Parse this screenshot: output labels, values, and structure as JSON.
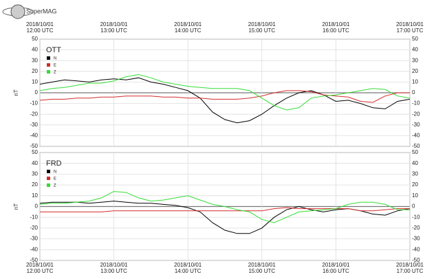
{
  "logo": "SuperMAG",
  "chart_data": [
    {
      "type": "line",
      "title": "OTT",
      "ylabel": "nT",
      "x": [
        "2018/10/01 12:00",
        "2018/10/01 12:10",
        "2018/10/01 12:20",
        "2018/10/01 12:30",
        "2018/10/01 12:40",
        "2018/10/01 12:50",
        "2018/10/01 13:00",
        "2018/10/01 13:10",
        "2018/10/01 13:20",
        "2018/10/01 13:30",
        "2018/10/01 13:40",
        "2018/10/01 13:50",
        "2018/10/01 14:00",
        "2018/10/01 14:10",
        "2018/10/01 14:20",
        "2018/10/01 14:30",
        "2018/10/01 14:40",
        "2018/10/01 14:50",
        "2018/10/01 15:00",
        "2018/10/01 15:10",
        "2018/10/01 15:20",
        "2018/10/01 15:30",
        "2018/10/01 15:40",
        "2018/10/01 15:50",
        "2018/10/01 16:00",
        "2018/10/01 16:10",
        "2018/10/01 16:20",
        "2018/10/01 16:30",
        "2018/10/01 16:40",
        "2018/10/01 16:50",
        "2018/10/01 17:00"
      ],
      "series": [
        {
          "name": "N",
          "color": "#000000",
          "values": [
            8,
            10,
            12,
            11,
            10,
            12,
            13,
            12,
            14,
            10,
            8,
            5,
            2,
            -5,
            -18,
            -25,
            -28,
            -26,
            -20,
            -12,
            -5,
            0,
            2,
            -2,
            -8,
            -7,
            -10,
            -14,
            -15,
            -8,
            -6
          ]
        },
        {
          "name": "E",
          "color": "#d42a2a",
          "values": [
            -7,
            -6,
            -6,
            -5,
            -5,
            -4,
            -4,
            -3,
            -3,
            -3,
            -4,
            -4,
            -5,
            -5,
            -6,
            -6,
            -6,
            -5,
            -3,
            0,
            2,
            2,
            1,
            -2,
            -3,
            -4,
            -8,
            -9,
            -3,
            0,
            0
          ]
        },
        {
          "name": "Z",
          "color": "#33dd33",
          "values": [
            2,
            4,
            5,
            7,
            9,
            9,
            11,
            15,
            17,
            14,
            10,
            8,
            6,
            5,
            4,
            4,
            4,
            2,
            -5,
            -12,
            -16,
            -14,
            -5,
            -3,
            -2,
            0,
            2,
            4,
            3,
            -3,
            -5
          ]
        }
      ],
      "xlim": [
        "2018/10/01 12:00",
        "2018/10/01 17:00"
      ],
      "xticks": [
        {
          "value": "2018/10/01 12:00",
          "label": [
            "2018/10/01",
            "12:00 UTC"
          ]
        },
        {
          "value": "2018/10/01 13:00",
          "label": [
            "2018/10/01",
            "13:00 UTC"
          ]
        },
        {
          "value": "2018/10/01 14:00",
          "label": [
            "2018/10/01",
            "14:00 UTC"
          ]
        },
        {
          "value": "2018/10/01 15:00",
          "label": [
            "2018/10/01",
            "15:00 UTC"
          ]
        },
        {
          "value": "2018/10/01 16:00",
          "label": [
            "2018/10/01",
            "16:00 UTC"
          ]
        },
        {
          "value": "2018/10/01 17:00",
          "label": [
            "2018/10/01",
            "17:00 UTC"
          ]
        }
      ],
      "ylim": [
        -50,
        50
      ],
      "yticks": [
        50,
        40,
        30,
        20,
        10,
        0,
        -10,
        -20,
        -30,
        -40,
        -50
      ],
      "grid": true
    },
    {
      "type": "line",
      "title": "FRD",
      "ylabel": "nT",
      "x": [
        "2018/10/01 12:00",
        "2018/10/01 12:10",
        "2018/10/01 12:20",
        "2018/10/01 12:30",
        "2018/10/01 12:40",
        "2018/10/01 12:50",
        "2018/10/01 13:00",
        "2018/10/01 13:10",
        "2018/10/01 13:20",
        "2018/10/01 13:30",
        "2018/10/01 13:40",
        "2018/10/01 13:50",
        "2018/10/01 14:00",
        "2018/10/01 14:10",
        "2018/10/01 14:20",
        "2018/10/01 14:30",
        "2018/10/01 14:40",
        "2018/10/01 14:50",
        "2018/10/01 15:00",
        "2018/10/01 15:10",
        "2018/10/01 15:20",
        "2018/10/01 15:30",
        "2018/10/01 15:40",
        "2018/10/01 15:50",
        "2018/10/01 16:00",
        "2018/10/01 16:10",
        "2018/10/01 16:20",
        "2018/10/01 16:30",
        "2018/10/01 16:40",
        "2018/10/01 16:50",
        "2018/10/01 17:00"
      ],
      "series": [
        {
          "name": "N",
          "color": "#000000",
          "values": [
            3,
            4,
            4,
            4,
            3,
            4,
            5,
            4,
            3,
            3,
            2,
            1,
            -1,
            -5,
            -15,
            -22,
            -25,
            -25,
            -20,
            -10,
            -3,
            0,
            -3,
            -5,
            -3,
            -2,
            -4,
            -7,
            -8,
            -4,
            -2
          ]
        },
        {
          "name": "E",
          "color": "#d42a2a",
          "values": [
            -5,
            -5,
            -5,
            -5,
            -5,
            -5,
            -4,
            -4,
            -4,
            -4,
            -4,
            -4,
            -4,
            -4,
            -4,
            -4,
            -4,
            -4,
            -4,
            -2,
            -1,
            -2,
            -2,
            -2,
            -2,
            -2,
            -4,
            -4,
            -3,
            -2,
            -2
          ]
        },
        {
          "name": "Z",
          "color": "#33dd33",
          "values": [
            2,
            3,
            3,
            4,
            5,
            8,
            14,
            13,
            8,
            5,
            6,
            8,
            10,
            6,
            2,
            0,
            -3,
            -5,
            -12,
            -15,
            -10,
            -5,
            -4,
            -3,
            -2,
            2,
            4,
            4,
            2,
            -3,
            -3
          ]
        }
      ],
      "xlim": [
        "2018/10/01 12:00",
        "2018/10/01 17:00"
      ],
      "xticks": [
        {
          "value": "2018/10/01 12:00",
          "label": [
            "2018/10/01",
            "12:00 UTC"
          ]
        },
        {
          "value": "2018/10/01 13:00",
          "label": [
            "2018/10/01",
            "13:00 UTC"
          ]
        },
        {
          "value": "2018/10/01 14:00",
          "label": [
            "2018/10/01",
            "14:00 UTC"
          ]
        },
        {
          "value": "2018/10/01 15:00",
          "label": [
            "2018/10/01",
            "15:00 UTC"
          ]
        },
        {
          "value": "2018/10/01 16:00",
          "label": [
            "2018/10/01",
            "16:00 UTC"
          ]
        },
        {
          "value": "2018/10/01 17:00",
          "label": [
            "2018/10/01",
            "17:00 UTC"
          ]
        }
      ],
      "ylim": [
        -50,
        50
      ],
      "yticks": [
        50,
        40,
        30,
        20,
        10,
        0,
        -10,
        -20,
        -30,
        -40,
        -50
      ],
      "grid": true
    }
  ]
}
